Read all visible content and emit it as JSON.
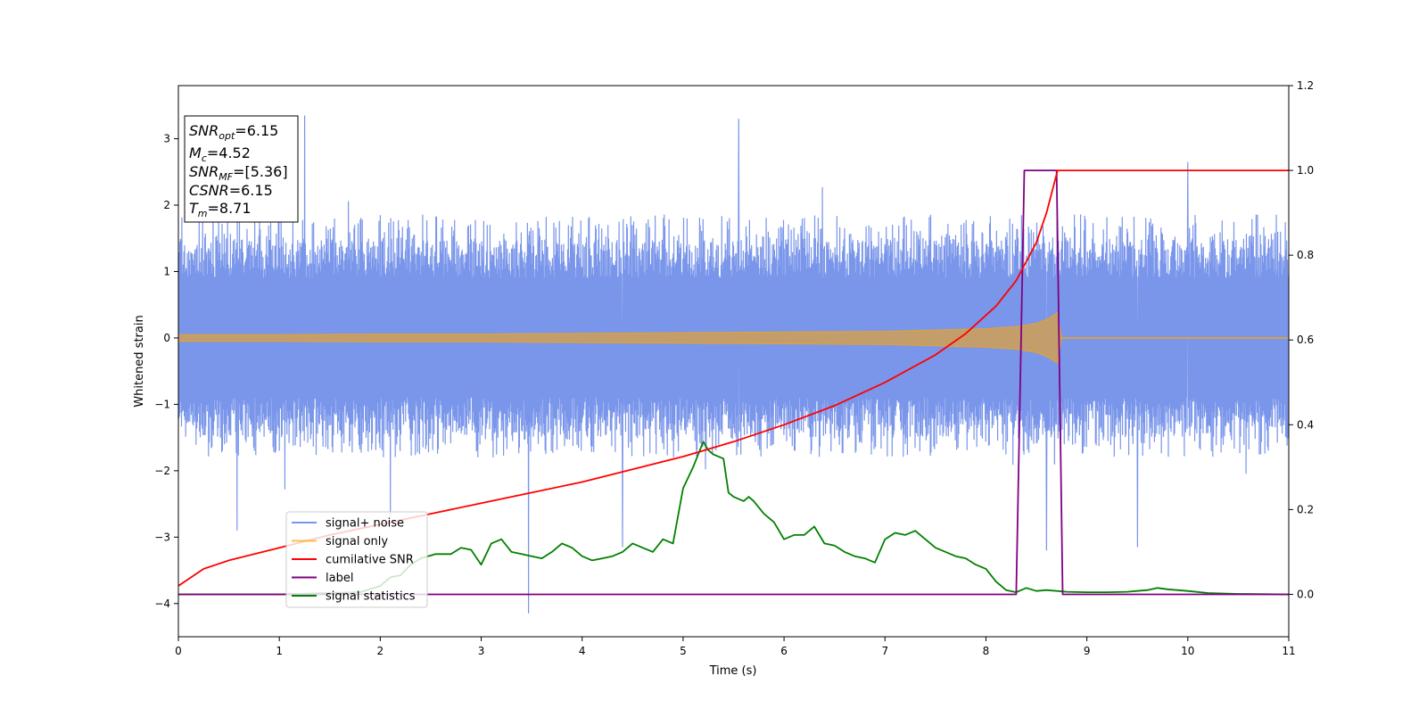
{
  "chart_data": {
    "type": "line",
    "xlabel": "Time (s)",
    "ylabel": "Whitened strain",
    "xlim": [
      0,
      11
    ],
    "ylim": [
      -4.5,
      3.8
    ],
    "y2lim": [
      -0.1,
      1.2
    ],
    "x_ticks": [
      0,
      1,
      2,
      3,
      4,
      5,
      6,
      7,
      8,
      9,
      10,
      11
    ],
    "y_ticks": [
      -4,
      -3,
      -2,
      -1,
      0,
      1,
      2,
      3
    ],
    "y2_ticks": [
      0.0,
      0.2,
      0.4,
      0.6,
      0.8,
      1.0,
      1.2
    ],
    "x_tick_labels": [
      "0",
      "1",
      "2",
      "3",
      "4",
      "5",
      "6",
      "7",
      "8",
      "9",
      "10",
      "11"
    ],
    "y_tick_labels": [
      "−4",
      "−3",
      "−2",
      "−1",
      "0",
      "1",
      "2",
      "3"
    ],
    "y2_tick_labels": [
      "0.0",
      "0.2",
      "0.4",
      "0.6",
      "0.8",
      "1.0",
      "1.2"
    ],
    "grid": false,
    "legend_position": "lower-left",
    "annotation": {
      "snr_opt": {
        "symbol": "SNR",
        "sub": "opt",
        "value": "=6.15"
      },
      "mc": {
        "symbol": "M",
        "sub": "c",
        "value": "=4.52"
      },
      "snr_mf": {
        "symbol": "SNR",
        "sub": "MF",
        "value": "=[5.36]"
      },
      "csnr": {
        "symbol": "CSNR",
        "value": "=6.15"
      },
      "tm": {
        "symbol": "T",
        "sub": "m",
        "value": "=8.71"
      }
    },
    "series": [
      {
        "name": "signal+ noise",
        "axis": "left",
        "color": "#4169E1",
        "style": "dense noise band, roughly within -1.9 to 2.0 with spikes up to 3.3 and down to -4.15",
        "band": {
          "lower": -1.9,
          "upper": 2.0
        },
        "spikes": [
          [
            1.25,
            3.35
          ],
          [
            5.55,
            3.3
          ],
          [
            10.0,
            2.65
          ],
          [
            3.47,
            -4.15
          ],
          [
            0.58,
            -2.9
          ],
          [
            2.1,
            -2.7
          ],
          [
            4.4,
            -3.15
          ],
          [
            8.6,
            -3.2
          ],
          [
            9.5,
            -3.15
          ]
        ]
      },
      {
        "name": "signal only",
        "axis": "left",
        "color": "#FFA500",
        "style": "chirp envelope ending at 8.71 s",
        "envelope": {
          "x": [
            0,
            1,
            2,
            3,
            4,
            5,
            6,
            7,
            8,
            8.3,
            8.5,
            8.6,
            8.71,
            8.75,
            11
          ],
          "amplitude": [
            0.05,
            0.05,
            0.06,
            0.06,
            0.07,
            0.08,
            0.09,
            0.1,
            0.14,
            0.17,
            0.22,
            0.28,
            0.38,
            0,
            0
          ]
        }
      },
      {
        "name": "cumilative SNR",
        "axis": "right",
        "color": "#FF0000",
        "x": [
          0,
          0.25,
          0.5,
          1,
          1.5,
          2,
          2.5,
          3,
          3.5,
          4,
          4.5,
          5,
          5.5,
          6,
          6.5,
          7,
          7.5,
          7.8,
          8.1,
          8.3,
          8.5,
          8.6,
          8.71,
          11
        ],
        "y": [
          0.02,
          0.06,
          0.08,
          0.11,
          0.14,
          0.165,
          0.19,
          0.215,
          0.24,
          0.265,
          0.295,
          0.325,
          0.36,
          0.4,
          0.445,
          0.5,
          0.565,
          0.615,
          0.68,
          0.74,
          0.83,
          0.9,
          1.0,
          1.0
        ]
      },
      {
        "name": "label",
        "axis": "right",
        "color": "#800080",
        "x": [
          0,
          8.3,
          8.38,
          8.7,
          8.76,
          11
        ],
        "y": [
          0,
          0,
          1,
          1,
          0,
          0
        ]
      },
      {
        "name": "signal statistics",
        "axis": "right",
        "color": "#008000",
        "x": [
          0,
          1.0,
          1.8,
          2.0,
          2.1,
          2.2,
          2.3,
          2.4,
          2.55,
          2.7,
          2.8,
          2.9,
          3.0,
          3.1,
          3.2,
          3.3,
          3.4,
          3.5,
          3.6,
          3.7,
          3.8,
          3.9,
          4.0,
          4.1,
          4.2,
          4.3,
          4.4,
          4.5,
          4.6,
          4.7,
          4.8,
          4.9,
          5.0,
          5.1,
          5.2,
          5.25,
          5.3,
          5.4,
          5.45,
          5.5,
          5.6,
          5.65,
          5.7,
          5.8,
          5.9,
          6.0,
          6.1,
          6.2,
          6.3,
          6.4,
          6.5,
          6.6,
          6.7,
          6.8,
          6.9,
          7.0,
          7.1,
          7.2,
          7.3,
          7.4,
          7.5,
          7.6,
          7.7,
          7.8,
          7.9,
          8.0,
          8.1,
          8.2,
          8.3,
          8.4,
          8.5,
          8.6,
          8.8,
          9.0,
          9.2,
          9.4,
          9.6,
          9.7,
          9.8,
          10.0,
          10.2,
          10.5,
          11
        ],
        "y": [
          0.0,
          0.0,
          0.005,
          0.02,
          0.04,
          0.045,
          0.07,
          0.085,
          0.095,
          0.095,
          0.11,
          0.105,
          0.07,
          0.12,
          0.13,
          0.1,
          0.095,
          0.09,
          0.085,
          0.1,
          0.12,
          0.11,
          0.09,
          0.08,
          0.085,
          0.09,
          0.1,
          0.12,
          0.11,
          0.1,
          0.13,
          0.12,
          0.25,
          0.3,
          0.36,
          0.34,
          0.33,
          0.32,
          0.24,
          0.23,
          0.22,
          0.23,
          0.22,
          0.19,
          0.17,
          0.13,
          0.14,
          0.14,
          0.16,
          0.12,
          0.115,
          0.1,
          0.09,
          0.085,
          0.075,
          0.13,
          0.145,
          0.14,
          0.15,
          0.13,
          0.11,
          0.1,
          0.09,
          0.085,
          0.07,
          0.06,
          0.03,
          0.01,
          0.005,
          0.015,
          0.008,
          0.01,
          0.006,
          0.005,
          0.005,
          0.006,
          0.01,
          0.015,
          0.012,
          0.008,
          0.003,
          0.001,
          0.0
        ]
      }
    ]
  }
}
